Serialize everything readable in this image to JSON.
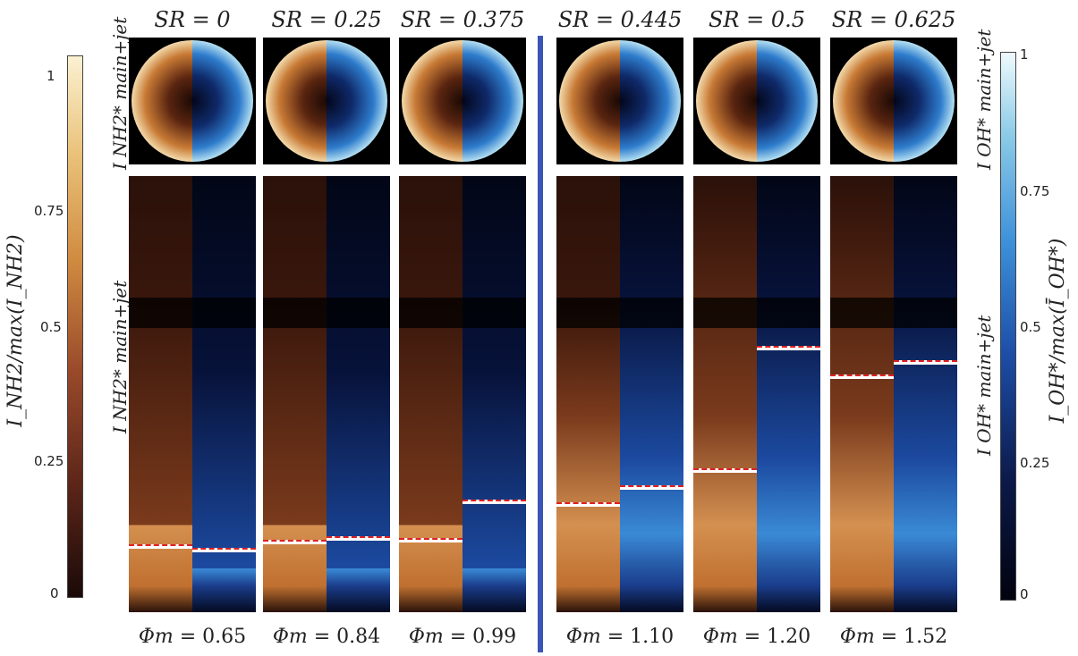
{
  "panels": [
    {
      "sr_label": "SR = 0",
      "phi_label": "= 0.65",
      "nh2_line": 0.845,
      "oh_line": 0.852
    },
    {
      "sr_label": "SR = 0.25",
      "phi_label": "= 0.84",
      "nh2_line": 0.834,
      "oh_line": 0.826
    },
    {
      "sr_label": "SR = 0.375",
      "phi_label": "= 0.99",
      "nh2_line": 0.83,
      "oh_line": 0.742
    },
    {
      "sr_label": "SR = 0.445",
      "phi_label": "= 1.10",
      "nh2_line": 0.748,
      "oh_line": 0.71
    },
    {
      "sr_label": "SR = 0.5",
      "phi_label": "= 1.20",
      "nh2_line": 0.67,
      "oh_line": 0.39
    },
    {
      "sr_label": "SR = 0.625",
      "phi_label": "= 1.52",
      "nh2_line": 0.455,
      "oh_line": 0.423
    }
  ],
  "phi_symbol": "Φm",
  "left_colorbar": {
    "ticks": [
      "1",
      "0.75",
      "0.5",
      "0.25",
      "0"
    ],
    "label": "I_NH2/max(I_NH2)",
    "colors": [
      "#1a0a08",
      "#5a2418",
      "#9a4a2a",
      "#cf8a40",
      "#eac27a",
      "#fbf1d2"
    ]
  },
  "right_colorbar": {
    "ticks": [
      "1",
      "0.75",
      "0.5",
      "0.25",
      "0"
    ],
    "label": "I_OH*/max(Ī_OH*)",
    "colors": [
      "#02030f",
      "#0c1a4a",
      "#1d4ea8",
      "#3c8fd8",
      "#8ccbe8",
      "#eefafc"
    ]
  },
  "labels": {
    "nh2_top": "I NH2* main+jet",
    "nh2_mid": "I NH2* main+jet",
    "oh_top": "I OH* main+jet",
    "oh_mid": "I OH* main+jet"
  },
  "divider_color": "#3a55b8",
  "marker_color": "#e02020"
}
